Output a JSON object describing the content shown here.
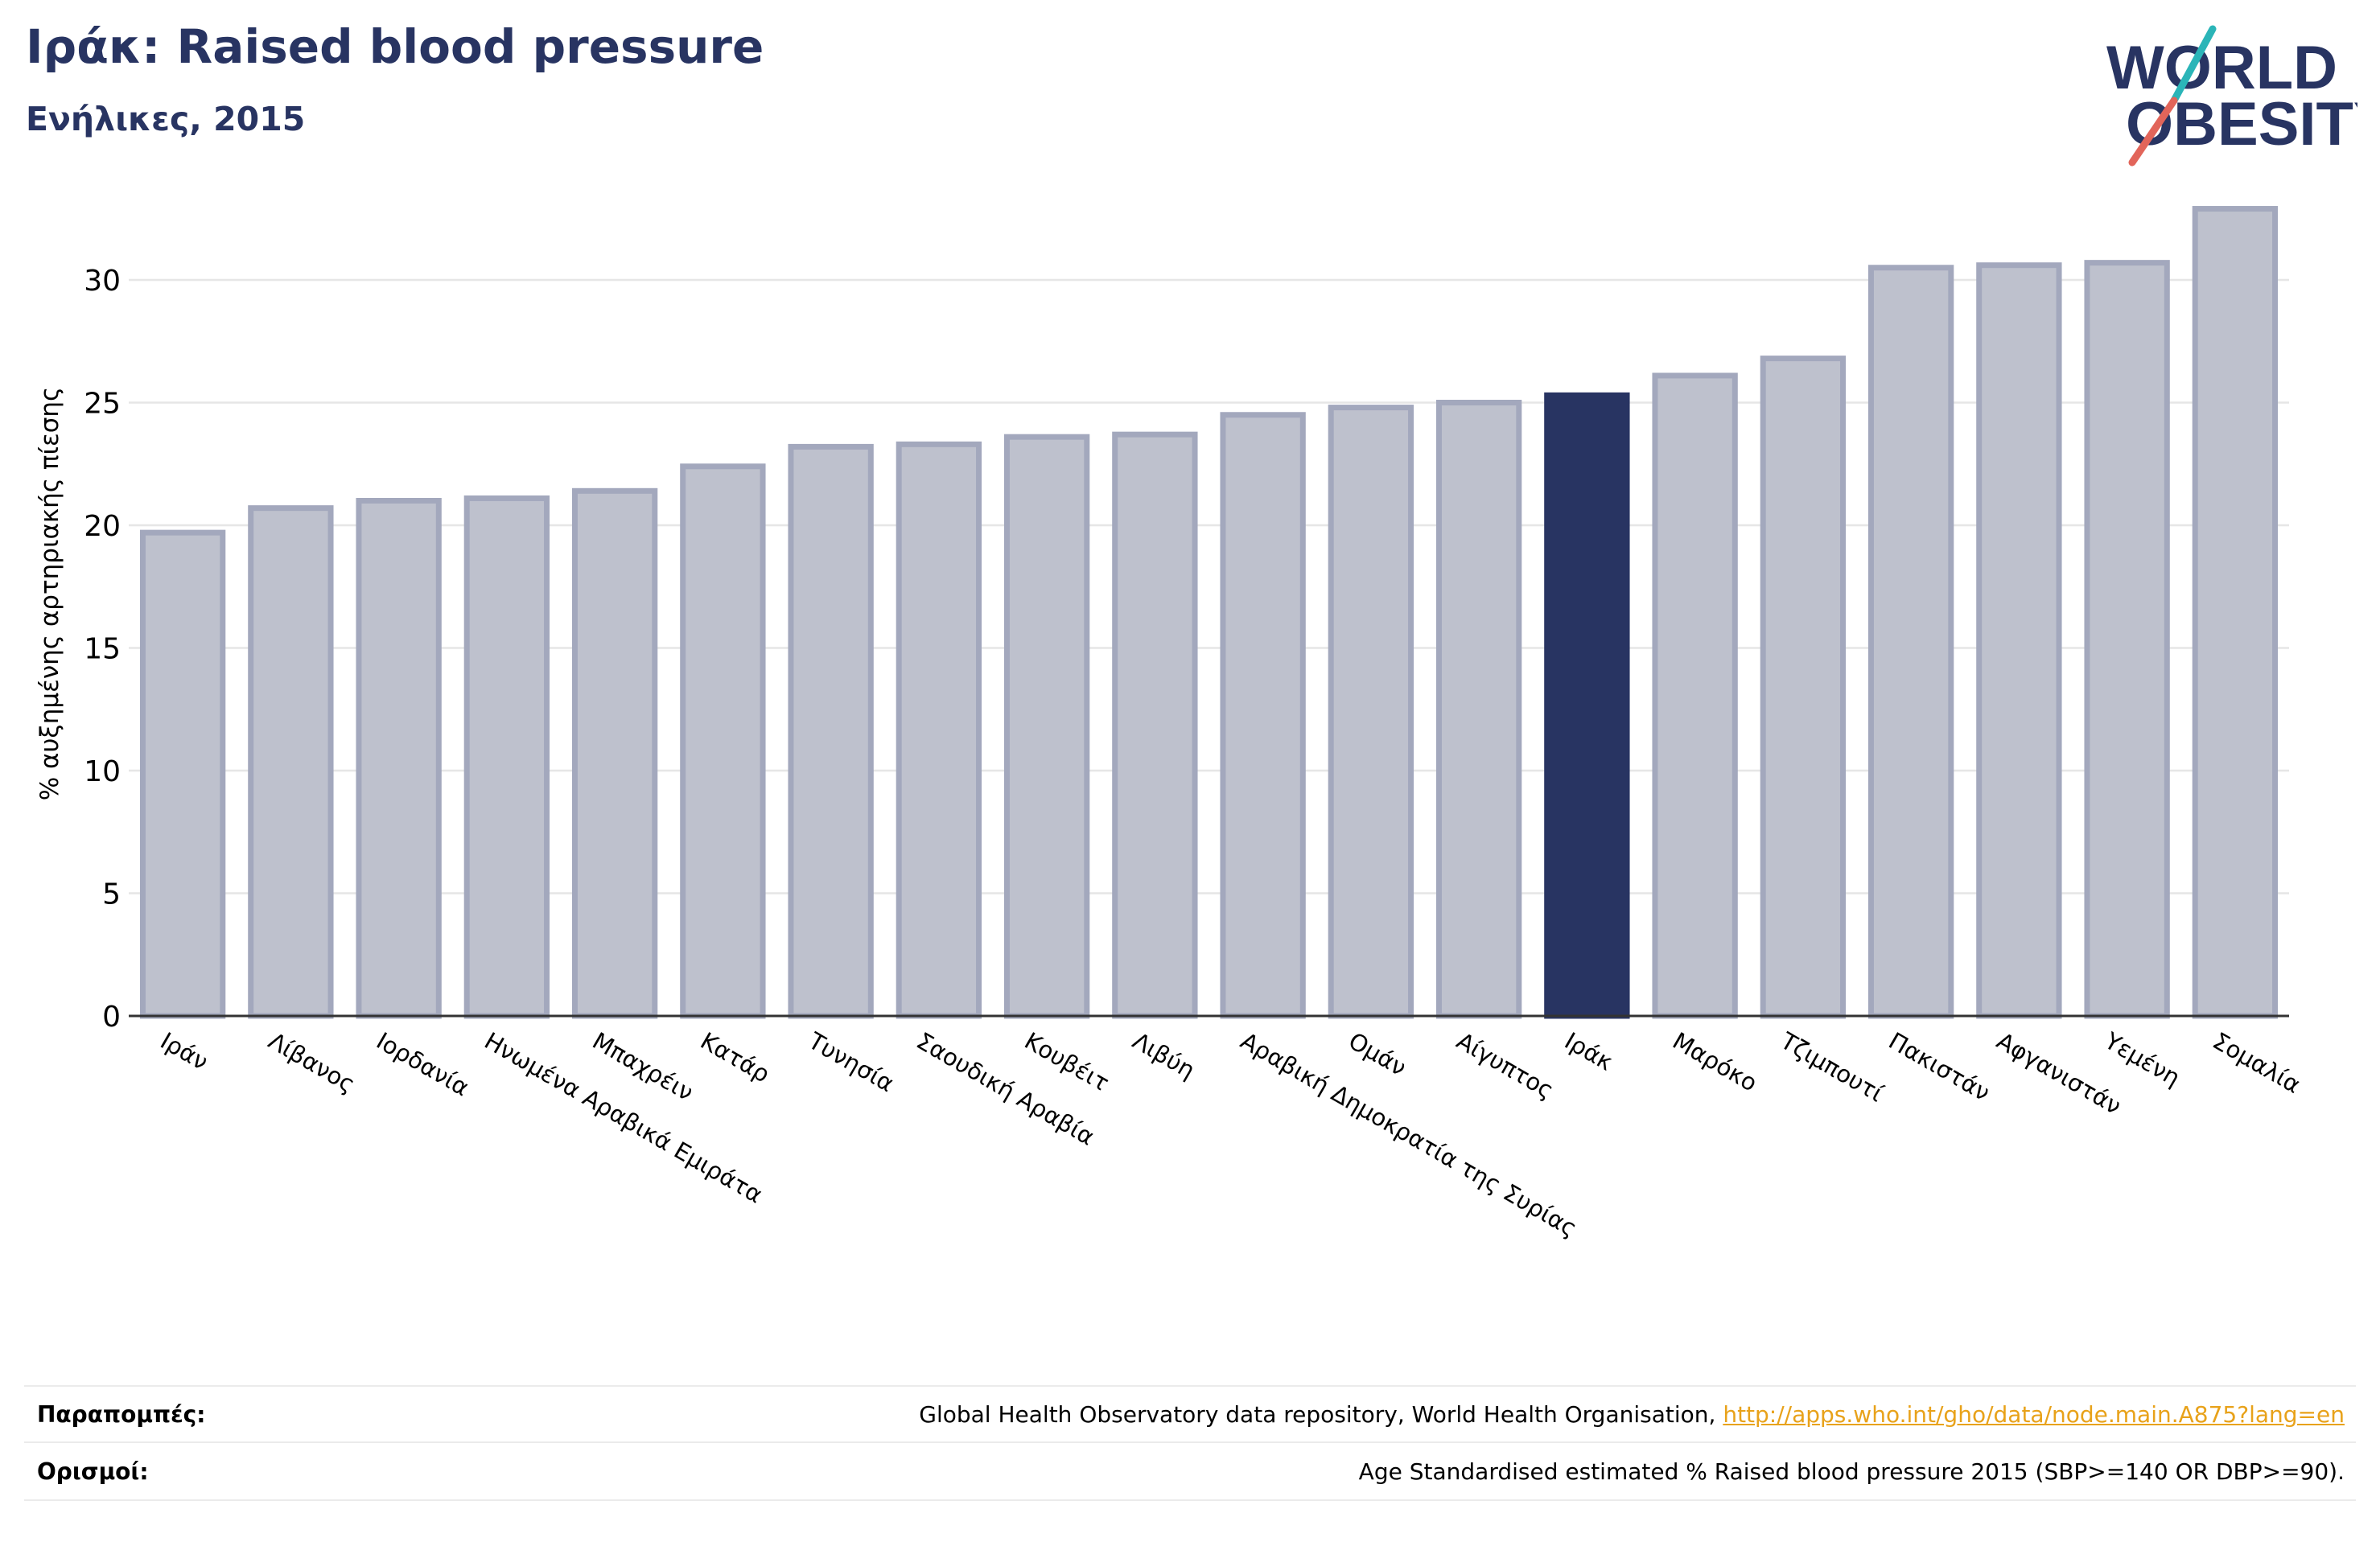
{
  "header": {
    "title": "Ιράκ: Raised blood pressure",
    "subtitle": "Ενήλικες, 2015"
  },
  "logo": {
    "line1": "WORLD",
    "line2": "OBESITY",
    "brand_color": "#283462",
    "accent_teal": "#2bb5b8",
    "accent_coral": "#e2655a"
  },
  "colors": {
    "bar_default": "#bec1cd",
    "bar_border": "#a3a8bd",
    "bar_highlight": "#283462",
    "grid": "#e6e6e6",
    "axis": "#333333"
  },
  "chart_data": {
    "type": "bar",
    "ylabel": "% αυξημένης αρτηριακής πίεσης",
    "ylim": [
      0,
      34
    ],
    "yticks": [
      0,
      5,
      10,
      15,
      20,
      25,
      30
    ],
    "grid": true,
    "highlight": "Ιράκ",
    "categories": [
      "Ιράν",
      "Λίβανος",
      "Ιορδανία",
      "Ηνωμένα Αραβικά Εμιράτα",
      "Μπαχρέιν",
      "Κατάρ",
      "Τυνησία",
      "Σαουδική Αραβία",
      "Κουβέιτ",
      "Λιβύη",
      "Αραβική Δημοκρατία της Συρίας",
      "Ομάν",
      "Αίγυπτος",
      "Ιράκ",
      "Μαρόκο",
      "Τζιμπουτί",
      "Πακιστάν",
      "Αφγανιστάν",
      "Υεμένη",
      "Σομαλία"
    ],
    "values": [
      19.7,
      20.7,
      21.0,
      21.1,
      21.4,
      22.4,
      23.2,
      23.3,
      23.6,
      23.7,
      24.5,
      24.8,
      25.0,
      25.3,
      26.1,
      26.8,
      30.5,
      30.6,
      30.7,
      32.9
    ]
  },
  "footer": {
    "references_label": "Παραπομπές:",
    "references_text": "Global Health Observatory data repository, World Health Organisation, ",
    "references_link": "http://apps.who.int/gho/data/node.main.A875?lang=en",
    "definitions_label": "Ορισμοί:",
    "definitions_text": "Age Standardised estimated % Raised blood pressure 2015 (SBP>=140 OR DBP>=90)."
  }
}
